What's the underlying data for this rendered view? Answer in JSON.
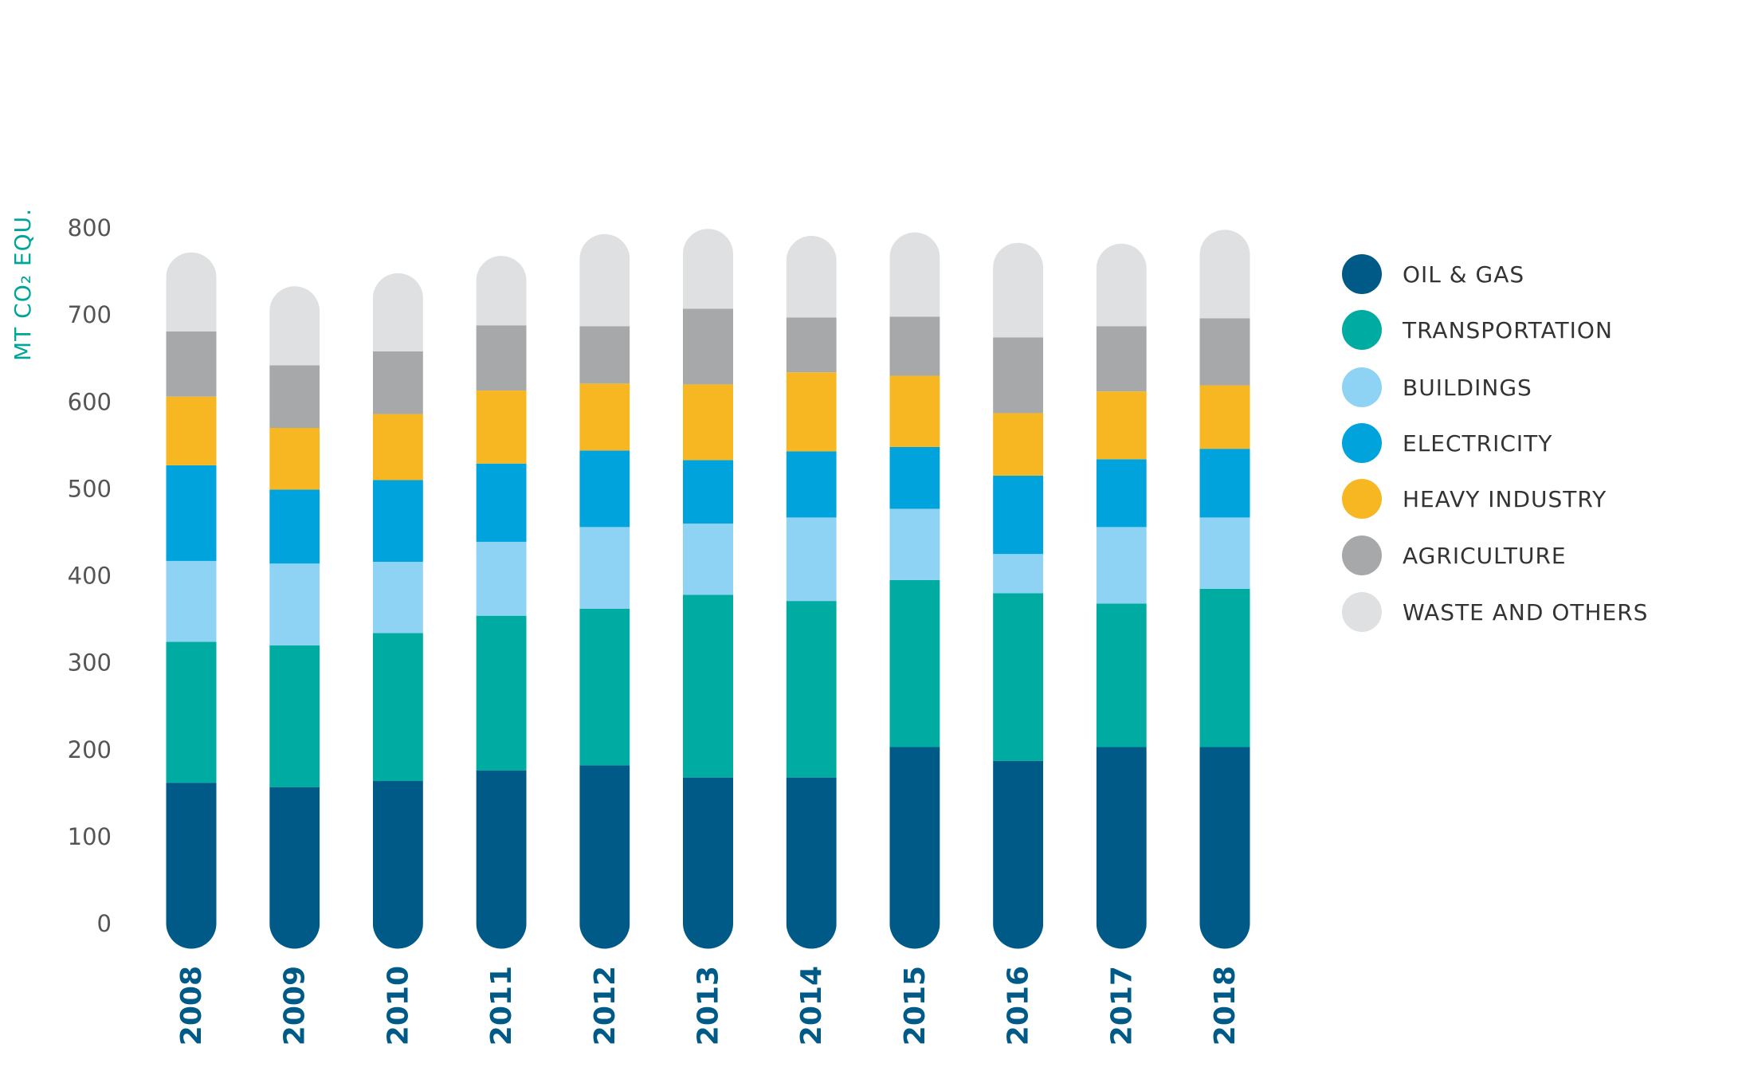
{
  "chart_data": {
    "type": "bar",
    "stacked": true,
    "title": "",
    "ylabel": "MT CO₂ EQU.",
    "xlabel": "",
    "ylim": [
      0,
      800
    ],
    "yticks": [
      "0",
      "100",
      "200",
      "300",
      "400",
      "500",
      "600",
      "700",
      "800"
    ],
    "categories": [
      "2008",
      "2009",
      "2010",
      "2011",
      "2012",
      "2013",
      "2014",
      "2015",
      "2016",
      "2017",
      "2018"
    ],
    "series": [
      {
        "name": "OIL & GAS",
        "color": "#005A87",
        "values": [
          162,
          157,
          164,
          176,
          182,
          168,
          168,
          203,
          187,
          203,
          203
        ]
      },
      {
        "name": "TRANSPORTATION",
        "color": "#00ABA1",
        "values": [
          162,
          163,
          170,
          178,
          180,
          210,
          203,
          192,
          193,
          165,
          182
        ]
      },
      {
        "name": "BUILDINGS",
        "color": "#8ED3F3",
        "values": [
          93,
          94,
          82,
          85,
          94,
          82,
          96,
          82,
          45,
          88,
          82
        ]
      },
      {
        "name": "ELECTRICITY",
        "color": "#00A3DC",
        "values": [
          110,
          85,
          94,
          90,
          88,
          73,
          76,
          71,
          90,
          78,
          79
        ]
      },
      {
        "name": "HEAVY INDUSTRY",
        "color": "#F7B723",
        "values": [
          79,
          71,
          76,
          84,
          77,
          87,
          91,
          82,
          72,
          78,
          73
        ]
      },
      {
        "name": "AGRICULTURE",
        "color": "#A7A8AA",
        "values": [
          75,
          72,
          72,
          75,
          66,
          87,
          63,
          68,
          87,
          75,
          77
        ]
      },
      {
        "name": "WASTE AND OTHERS",
        "color": "#DFE0E1",
        "values": [
          62,
          62,
          61,
          51,
          77,
          63,
          65,
          68,
          80,
          66,
          73
        ]
      }
    ],
    "legend_position": "right",
    "grid": false,
    "ylabel_color": "#00A59A",
    "xtick_color": "#005A87"
  }
}
